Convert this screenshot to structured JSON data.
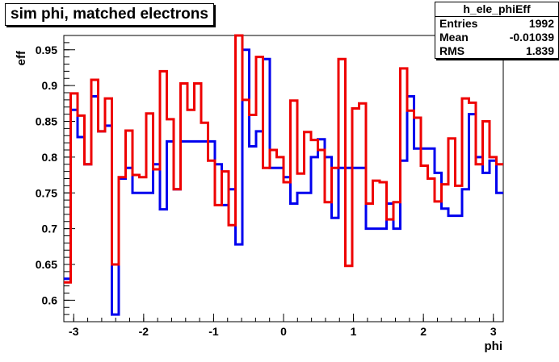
{
  "chart_data": {
    "type": "step",
    "title": "sim phi, matched electrons",
    "xlabel": "phi",
    "ylabel": "eff",
    "xlim": [
      -3.1416,
      3.1416
    ],
    "ylim": [
      0.57,
      0.97
    ],
    "xticks": [
      -3,
      -2,
      -1,
      0,
      1,
      2,
      3
    ],
    "xtick_labels": [
      "-3",
      "-2",
      "-1",
      "0",
      "1",
      "2",
      "3"
    ],
    "yticks": [
      0.6,
      0.65,
      0.7,
      0.75,
      0.8,
      0.85,
      0.9,
      0.95
    ],
    "ytick_labels": [
      "0.6",
      "0.65",
      "0.7",
      "0.75",
      "0.8",
      "0.85",
      "0.9",
      "0.95"
    ],
    "bins": 64,
    "series": [
      {
        "color": "#0000ee",
        "values": [
          0.63,
          0.866,
          0.828,
          0.79,
          0.885,
          0.836,
          0.844,
          0.58,
          0.77,
          0.785,
          0.75,
          0.75,
          0.75,
          0.79,
          0.727,
          0.822,
          0.755,
          0.822,
          0.822,
          0.822,
          0.822,
          0.822,
          0.79,
          0.733,
          0.755,
          0.678,
          0.95,
          0.815,
          0.836,
          0.937,
          0.785,
          0.785,
          0.772,
          0.735,
          0.75,
          0.75,
          0.8,
          0.825,
          0.8,
          0.715,
          0.785,
          0.785,
          0.785,
          0.785,
          0.7,
          0.7,
          0.7,
          0.735,
          0.7,
          0.795,
          0.885,
          0.812,
          0.812,
          0.812,
          0.778,
          0.728,
          0.718,
          0.718,
          0.755,
          0.86,
          0.8,
          0.778,
          0.795,
          0.75
        ]
      },
      {
        "color": "#ee0000",
        "values": [
          0.625,
          0.889,
          0.858,
          0.79,
          0.908,
          0.836,
          0.882,
          0.65,
          0.772,
          0.837,
          0.775,
          0.772,
          0.861,
          0.783,
          0.92,
          0.853,
          0.755,
          0.903,
          0.866,
          0.903,
          0.848,
          0.795,
          0.733,
          0.78,
          0.705,
          0.97,
          0.88,
          0.859,
          0.94,
          0.785,
          0.81,
          0.8,
          0.765,
          0.879,
          0.777,
          0.835,
          0.824,
          0.81,
          0.737,
          0.785,
          0.937,
          0.648,
          0.868,
          0.875,
          0.735,
          0.767,
          0.765,
          0.713,
          0.737,
          0.924,
          0.865,
          0.855,
          0.788,
          0.77,
          0.738,
          0.762,
          0.826,
          0.76,
          0.882,
          0.876,
          0.79,
          0.85,
          0.8,
          0.79
        ]
      }
    ],
    "stats": {
      "name": "h_ele_phiEff",
      "entries_label": "Entries",
      "entries": "1992",
      "mean_label": "Mean",
      "mean": "-0.01039",
      "rms_label": "RMS",
      "rms": "1.839"
    }
  }
}
